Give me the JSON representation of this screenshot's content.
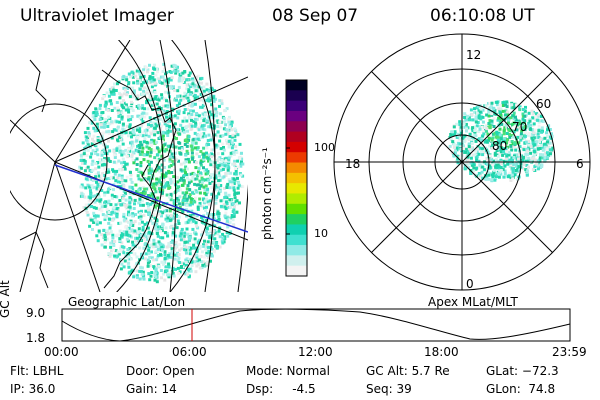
{
  "header": {
    "instrument": "Ultraviolet Imager",
    "date": "08 Sep 07",
    "time": "06:10:08 UT"
  },
  "colorbar": {
    "label": "photon cm⁻²s⁻¹",
    "ticks": [
      "100",
      "10"
    ],
    "colors": [
      "#000022",
      "#1a0050",
      "#3c0078",
      "#6a0080",
      "#8e0050",
      "#b00020",
      "#d40000",
      "#ec3a00",
      "#f48a00",
      "#f4c000",
      "#e8e800",
      "#b0ec00",
      "#60e000",
      "#20d060",
      "#10d0b0",
      "#40e0d0",
      "#90eae6",
      "#d0f0ee",
      "#f4f4f4"
    ]
  },
  "geo_panel": {
    "label": "Geographic Lat/Lon"
  },
  "polar_panel": {
    "label": "Apex MLat/MLT",
    "mlt_labels": [
      "12",
      "18",
      "6",
      "0"
    ],
    "lat_labels": [
      "60",
      "70",
      "80"
    ]
  },
  "orbit_plot": {
    "ylabel": "GC Alt",
    "y_ticks": [
      "9.0",
      "1.8"
    ],
    "x_ticks": [
      "00:00",
      "06:00",
      "12:00",
      "18:00",
      "23:59"
    ]
  },
  "status": {
    "filter": "Flt: LBHL",
    "ip": "IP: 36.0",
    "door": "Door: Open",
    "gain": "Gain: 14",
    "mode": "Mode: Normal",
    "dsp": "Dsp:     -4.5",
    "gc_alt": "GC Alt: 5.7 Re",
    "seq": "Seq: 39",
    "glat": "GLat: −72.3",
    "glon": "GLon:  74.8"
  }
}
